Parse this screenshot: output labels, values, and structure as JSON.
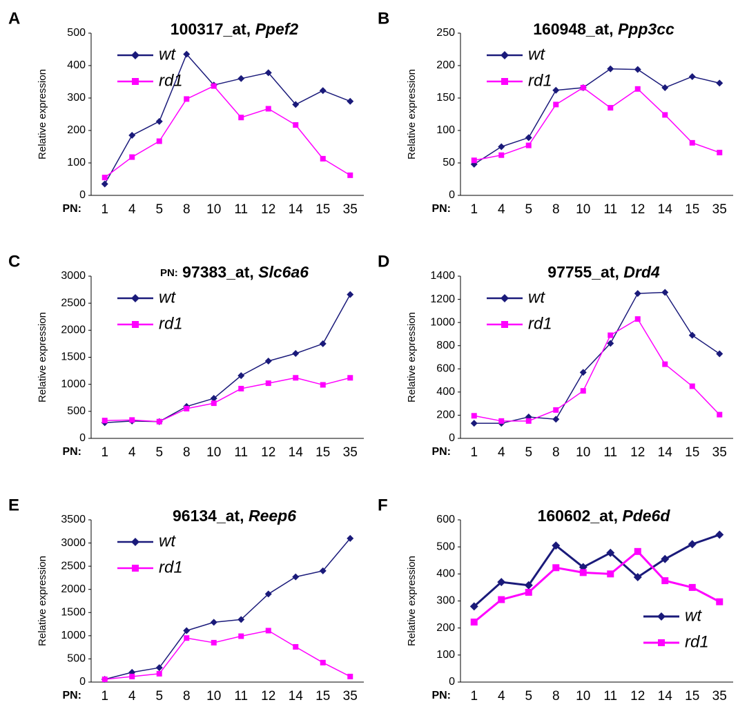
{
  "chart_data": [
    {
      "type": "line",
      "panel": "A",
      "title": "100317_at,",
      "gene": "Ppef2",
      "y_label": "Relative expression",
      "x_label": "PN:",
      "categories": [
        "1",
        "4",
        "5",
        "8",
        "10",
        "11",
        "12",
        "14",
        "15",
        "35"
      ],
      "ylim": [
        0,
        500
      ],
      "yticks": [
        0,
        100,
        200,
        300,
        400,
        500
      ],
      "legend": "top-left",
      "line_width": 1.5,
      "series": [
        {
          "name": "wt",
          "color": "#1a1a7a",
          "marker": "diamond",
          "values": [
            35,
            185,
            228,
            435,
            340,
            360,
            378,
            280,
            323,
            290
          ]
        },
        {
          "name": "rd1",
          "color": "#ff00ff",
          "marker": "square",
          "values": [
            55,
            118,
            167,
            297,
            337,
            240,
            267,
            217,
            113,
            62
          ]
        }
      ]
    },
    {
      "type": "line",
      "panel": "B",
      "title": "160948_at,",
      "gene": "Ppp3cc",
      "y_label": "Relative expression",
      "x_label": "PN:",
      "categories": [
        "1",
        "4",
        "5",
        "8",
        "10",
        "11",
        "12",
        "14",
        "15",
        "35"
      ],
      "ylim": [
        0,
        250
      ],
      "yticks": [
        0,
        50,
        100,
        150,
        200,
        250
      ],
      "legend": "top-left",
      "line_width": 1.5,
      "series": [
        {
          "name": "wt",
          "color": "#1a1a7a",
          "marker": "diamond",
          "values": [
            48,
            75,
            89,
            162,
            166,
            195,
            194,
            166,
            183,
            173
          ]
        },
        {
          "name": "rd1",
          "color": "#ff00ff",
          "marker": "square",
          "values": [
            54,
            62,
            77,
            140,
            166,
            135,
            164,
            124,
            81,
            66
          ]
        }
      ]
    },
    {
      "type": "line",
      "panel": "C",
      "title_prefix": "PN:",
      "title": "97383_at,",
      "gene": "Slc6a6",
      "y_label": "Relative expression",
      "x_label": "PN:",
      "categories": [
        "1",
        "4",
        "5",
        "8",
        "10",
        "11",
        "12",
        "14",
        "15",
        "35"
      ],
      "ylim": [
        0,
        3000
      ],
      "yticks": [
        0,
        500,
        1000,
        1500,
        2000,
        2500,
        3000
      ],
      "legend": "top-left",
      "line_width": 1.5,
      "series": [
        {
          "name": "wt",
          "color": "#1a1a7a",
          "marker": "diamond",
          "values": [
            290,
            320,
            310,
            590,
            740,
            1160,
            1430,
            1570,
            1750,
            2660
          ]
        },
        {
          "name": "rd1",
          "color": "#ff00ff",
          "marker": "square",
          "values": [
            330,
            340,
            310,
            550,
            650,
            920,
            1020,
            1120,
            990,
            1120
          ]
        }
      ]
    },
    {
      "type": "line",
      "panel": "D",
      "title": "97755_at,",
      "gene": "Drd4",
      "y_label": "Relative expression",
      "x_label": "PN:",
      "categories": [
        "1",
        "4",
        "5",
        "8",
        "10",
        "11",
        "12",
        "14",
        "15",
        "35"
      ],
      "ylim": [
        0,
        1400
      ],
      "yticks": [
        0,
        200,
        400,
        600,
        800,
        1000,
        1200,
        1400
      ],
      "legend": "top-left",
      "line_width": 1.5,
      "series": [
        {
          "name": "wt",
          "color": "#1a1a7a",
          "marker": "diamond",
          "values": [
            130,
            130,
            185,
            165,
            570,
            820,
            1250,
            1260,
            890,
            730
          ]
        },
        {
          "name": "rd1",
          "color": "#ff00ff",
          "marker": "square",
          "values": [
            195,
            150,
            150,
            245,
            410,
            890,
            1030,
            640,
            450,
            205
          ]
        }
      ]
    },
    {
      "type": "line",
      "panel": "E",
      "title": "96134_at,",
      "gene": "Reep6",
      "y_label": "Relative expression",
      "x_label": "PN:",
      "categories": [
        "1",
        "4",
        "5",
        "8",
        "10",
        "11",
        "12",
        "14",
        "15",
        "35"
      ],
      "ylim": [
        0,
        3500
      ],
      "yticks": [
        0,
        500,
        1000,
        1500,
        2000,
        2500,
        3000,
        3500
      ],
      "legend": "top-left",
      "line_width": 1.5,
      "series": [
        {
          "name": "wt",
          "color": "#1a1a7a",
          "marker": "diamond",
          "values": [
            60,
            210,
            310,
            1110,
            1290,
            1350,
            1900,
            2270,
            2400,
            3100
          ]
        },
        {
          "name": "rd1",
          "color": "#ff00ff",
          "marker": "square",
          "values": [
            60,
            120,
            180,
            950,
            850,
            990,
            1110,
            760,
            420,
            120
          ]
        }
      ]
    },
    {
      "type": "line",
      "panel": "F",
      "title": "160602_at,",
      "gene": "Pde6d",
      "y_label": "Relative expression",
      "x_label": "PN:",
      "categories": [
        "1",
        "4",
        "5",
        "8",
        "10",
        "11",
        "12",
        "14",
        "15",
        "35"
      ],
      "ylim": [
        0,
        600
      ],
      "yticks": [
        0,
        100,
        200,
        300,
        400,
        500,
        600
      ],
      "legend": "bottom-right",
      "line_width": 3,
      "series": [
        {
          "name": "wt",
          "color": "#1a1a7a",
          "marker": "diamond",
          "values": [
            280,
            370,
            358,
            505,
            425,
            478,
            388,
            455,
            510,
            545
          ]
        },
        {
          "name": "rd1",
          "color": "#ff00ff",
          "marker": "square",
          "values": [
            222,
            305,
            332,
            423,
            405,
            400,
            483,
            375,
            350,
            297
          ]
        }
      ]
    }
  ]
}
